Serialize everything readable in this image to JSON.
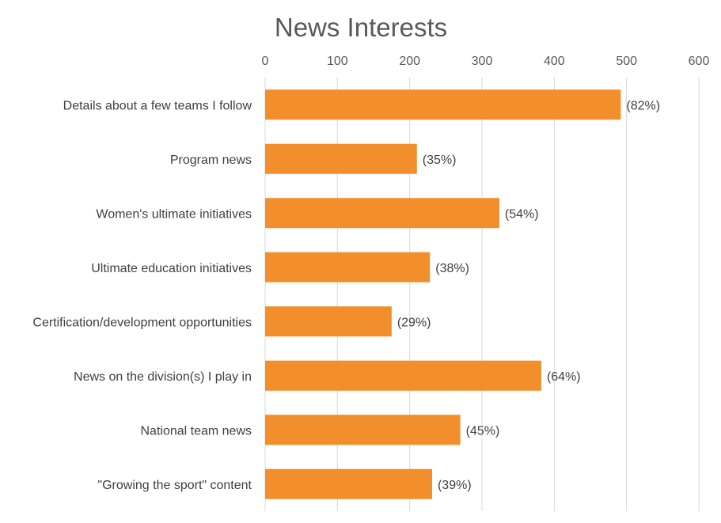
{
  "chart_data": {
    "type": "bar",
    "orientation": "horizontal",
    "title": "News Interests",
    "xlabel": "",
    "ylabel": "",
    "xlim": [
      0,
      600
    ],
    "x_ticks": [
      0,
      100,
      200,
      300,
      400,
      500,
      600
    ],
    "axis_position": "top",
    "grid": true,
    "legend": "none",
    "bar_color": "#f28e2b",
    "categories": [
      "Details about a few teams I follow",
      "Program news",
      "Women's ultimate initiatives",
      "Ultimate education initiatives",
      "Certification/development opportunities",
      "News on the division(s) I play in",
      "National team news",
      "\"Growing the sport\" content"
    ],
    "values": [
      492,
      210,
      324,
      228,
      175,
      382,
      270,
      231
    ],
    "data_labels": [
      "(82%)",
      "(35%)",
      "(54%)",
      "(38%)",
      "(29%)",
      "(64%)",
      "(45%)",
      "(39%)"
    ]
  }
}
